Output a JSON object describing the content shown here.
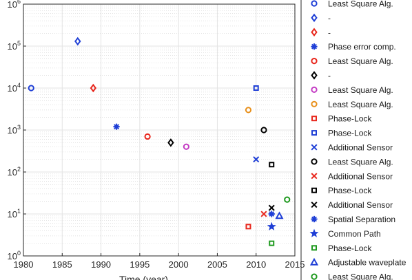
{
  "chart_data": {
    "type": "scatter",
    "title": "",
    "xlabel": "Time (year)",
    "ylabel": "",
    "xlim": [
      1980,
      2015
    ],
    "ylim": [
      1,
      1000000
    ],
    "yscale": "log",
    "grid": true,
    "legend_position": "outside-right",
    "x_ticks": [
      "1980",
      "1985",
      "1990",
      "1995",
      "2000",
      "2005",
      "2010",
      "2015"
    ],
    "y_ticks": [
      {
        "base": "10",
        "exp": "0",
        "value": 1
      },
      {
        "base": "10",
        "exp": "1",
        "value": 10
      },
      {
        "base": "10",
        "exp": "2",
        "value": 100
      },
      {
        "base": "10",
        "exp": "3",
        "value": 1000
      },
      {
        "base": "10",
        "exp": "4",
        "value": 10000
      },
      {
        "base": "10",
        "exp": "5",
        "value": 100000
      },
      {
        "base": "10",
        "exp": "6",
        "value": 1000000
      }
    ],
    "series": [
      {
        "name": "Least Square Alg.",
        "color": "#1f3fd6",
        "marker": "circle",
        "x": [
          1981
        ],
        "y": [
          10000
        ]
      },
      {
        "name": "-",
        "color": "#1f3fd6",
        "marker": "diamond",
        "x": [
          1987
        ],
        "y": [
          130000
        ]
      },
      {
        "name": "-",
        "color": "#e8261c",
        "marker": "diamond",
        "x": [
          1989
        ],
        "y": [
          10000
        ]
      },
      {
        "name": "Phase error comp.",
        "color": "#1f3fd6",
        "marker": "asterisk",
        "x": [
          1992
        ],
        "y": [
          1200
        ]
      },
      {
        "name": "Least Square Alg.",
        "color": "#e8261c",
        "marker": "circle",
        "x": [
          1996
        ],
        "y": [
          700
        ]
      },
      {
        "name": "-",
        "color": "#000000",
        "marker": "diamond",
        "x": [
          1999
        ],
        "y": [
          500
        ]
      },
      {
        "name": "Least Square Alg.",
        "color": "#c43cc4",
        "marker": "circle",
        "x": [
          2001
        ],
        "y": [
          400
        ]
      },
      {
        "name": "Least Square Alg.",
        "color": "#e8901c",
        "marker": "circle",
        "x": [
          2009
        ],
        "y": [
          3000
        ]
      },
      {
        "name": "Phase-Lock",
        "color": "#e8261c",
        "marker": "square",
        "x": [
          2009
        ],
        "y": [
          5
        ]
      },
      {
        "name": "Phase-Lock",
        "color": "#1f3fd6",
        "marker": "square",
        "x": [
          2010
        ],
        "y": [
          10000
        ]
      },
      {
        "name": "Additional Sensor",
        "color": "#1f3fd6",
        "marker": "x",
        "x": [
          2010
        ],
        "y": [
          200
        ]
      },
      {
        "name": "Least Square Alg.",
        "color": "#000000",
        "marker": "circle",
        "x": [
          2011
        ],
        "y": [
          1000
        ]
      },
      {
        "name": "Additional Sensor",
        "color": "#e8261c",
        "marker": "x",
        "x": [
          2011
        ],
        "y": [
          10
        ]
      },
      {
        "name": "Phase-Lock",
        "color": "#000000",
        "marker": "square",
        "x": [
          2012
        ],
        "y": [
          150
        ]
      },
      {
        "name": "Additional Sensor",
        "color": "#000000",
        "marker": "x",
        "x": [
          2012
        ],
        "y": [
          14
        ]
      },
      {
        "name": "Spatial Separation",
        "color": "#1f3fd6",
        "marker": "asterisk",
        "x": [
          2012
        ],
        "y": [
          10
        ]
      },
      {
        "name": "Common Path",
        "color": "#1f3fd6",
        "marker": "star",
        "x": [
          2012
        ],
        "y": [
          5
        ]
      },
      {
        "name": "Phase-Lock",
        "color": "#1f9a1f",
        "marker": "square",
        "x": [
          2012
        ],
        "y": [
          2
        ]
      },
      {
        "name": "Adjustable waveplate",
        "color": "#1f3fd6",
        "marker": "triangle",
        "x": [
          2013
        ],
        "y": [
          9
        ]
      },
      {
        "name": "Least Square Alg.",
        "color": "#1f9a1f",
        "marker": "circle",
        "x": [
          2014
        ],
        "y": [
          22
        ]
      }
    ]
  }
}
